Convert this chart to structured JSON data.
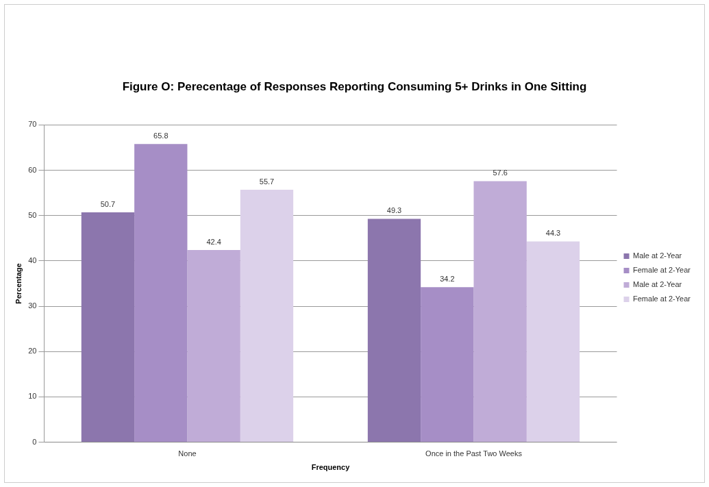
{
  "chart_data": {
    "type": "bar",
    "title": "Figure O: Perecentage of Responses Reporting Consuming 5+ Drinks in One Sitting",
    "xlabel": "Frequency",
    "ylabel": "Percentage",
    "categories": [
      "None",
      "Once in the Past Two Weeks"
    ],
    "series": [
      {
        "name": "Male at 2-Year",
        "color": "#8c76ad",
        "values": [
          50.7,
          49.3
        ]
      },
      {
        "name": "Female at 2-Year",
        "color": "#a68ec6",
        "values": [
          65.8,
          34.2
        ]
      },
      {
        "name": "Male at 2-Year",
        "color": "#c0acd7",
        "values": [
          42.4,
          57.6
        ]
      },
      {
        "name": "Female at 2-Year",
        "color": "#dcd1ea",
        "values": [
          55.7,
          44.3
        ]
      }
    ],
    "ylim": [
      0,
      70
    ],
    "yticks": [
      0,
      10,
      20,
      30,
      40,
      50,
      60,
      70
    ],
    "grid": "y",
    "legend": "right",
    "data_labels": true
  }
}
